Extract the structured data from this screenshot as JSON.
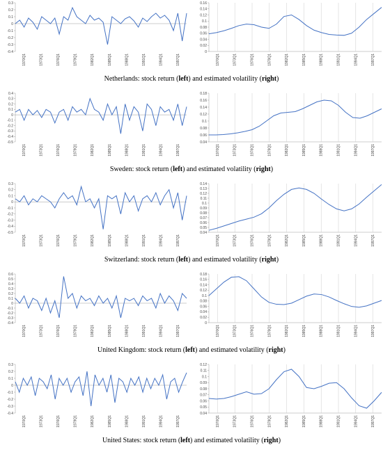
{
  "chart_data": [
    {
      "type": "line",
      "color": "#4472c4",
      "grid": false,
      "ylim": [
        -0.4,
        0.3
      ],
      "yticks": [
        -0.4,
        -0.3,
        -0.2,
        -0.1,
        0,
        0.1,
        0.2,
        0.3
      ],
      "x_tick_labels": [
        "1970Q1",
        "1973Q1",
        "1976Q1",
        "1979Q1",
        "1982Q1",
        "1985Q1",
        "1988Q1",
        "1991Q1",
        "1994Q1",
        "1997Q1"
      ],
      "values": [
        0.0,
        0.05,
        -0.05,
        0.08,
        0.02,
        -0.08,
        0.1,
        0.05,
        0.0,
        0.08,
        -0.15,
        0.1,
        0.05,
        0.23,
        0.1,
        0.05,
        0.0,
        0.12,
        0.05,
        0.08,
        0.02,
        -0.3,
        0.1,
        0.05,
        0.0,
        0.07,
        0.1,
        0.04,
        -0.05,
        0.08,
        0.03,
        0.1,
        0.15,
        0.08,
        0.12,
        0.05,
        -0.1,
        0.15,
        -0.25,
        0.15
      ]
    },
    {
      "type": "line",
      "color": "#4472c4",
      "grid": true,
      "ylim": [
        0,
        0.16
      ],
      "yticks": [
        0,
        0.02,
        0.04,
        0.06,
        0.08,
        0.1,
        0.12,
        0.14,
        0.16
      ],
      "x_tick_labels": [
        "1970Q1",
        "1973Q1",
        "1976Q1",
        "1979Q1",
        "1982Q1",
        "1985Q1",
        "1988Q1",
        "1991Q1",
        "1994Q1",
        "1997Q1"
      ],
      "values": [
        0.058,
        0.062,
        0.068,
        0.076,
        0.085,
        0.09,
        0.088,
        0.08,
        0.076,
        0.09,
        0.115,
        0.12,
        0.105,
        0.085,
        0.07,
        0.062,
        0.056,
        0.054,
        0.053,
        0.06,
        0.08,
        0.105,
        0.125,
        0.145
      ]
    },
    {
      "type": "line",
      "color": "#4472c4",
      "grid": false,
      "ylim": [
        -0.5,
        0.4
      ],
      "yticks": [
        -0.5,
        -0.4,
        -0.3,
        -0.2,
        -0.1,
        0,
        0.1,
        0.2,
        0.3,
        0.4
      ],
      "x_tick_labels": [
        "1970Q1",
        "1973Q1",
        "1976Q1",
        "1979Q1",
        "1982Q1",
        "1985Q1",
        "1988Q1",
        "1991Q1",
        "1994Q1",
        "1997Q1"
      ],
      "values": [
        0.05,
        0.1,
        -0.1,
        0.1,
        0.0,
        0.08,
        -0.05,
        0.1,
        0.05,
        -0.15,
        0.05,
        0.1,
        -0.1,
        0.15,
        0.05,
        0.1,
        0.0,
        0.3,
        0.1,
        0.05,
        -0.1,
        0.2,
        0.0,
        0.15,
        -0.35,
        0.2,
        -0.1,
        0.15,
        0.05,
        -0.3,
        0.2,
        0.1,
        -0.2,
        0.15,
        0.05,
        0.1,
        -0.1,
        0.2,
        -0.2,
        0.15
      ]
    },
    {
      "type": "line",
      "color": "#4472c4",
      "grid": true,
      "ylim": [
        0.04,
        0.18
      ],
      "yticks": [
        0.04,
        0.06,
        0.08,
        0.1,
        0.12,
        0.14,
        0.16,
        0.18
      ],
      "x_tick_labels": [
        "1970Q1",
        "1973Q1",
        "1976Q1",
        "1979Q1",
        "1982Q1",
        "1985Q1",
        "1988Q1",
        "1991Q1",
        "1994Q1",
        "1997Q1"
      ],
      "values": [
        0.06,
        0.06,
        0.061,
        0.063,
        0.066,
        0.07,
        0.075,
        0.085,
        0.1,
        0.115,
        0.123,
        0.125,
        0.127,
        0.135,
        0.145,
        0.155,
        0.16,
        0.158,
        0.145,
        0.125,
        0.11,
        0.108,
        0.115,
        0.125,
        0.135
      ]
    },
    {
      "type": "line",
      "color": "#4472c4",
      "grid": false,
      "ylim": [
        -0.5,
        0.3
      ],
      "yticks": [
        -0.5,
        -0.4,
        -0.3,
        -0.2,
        -0.1,
        0,
        0.1,
        0.2,
        0.3
      ],
      "x_tick_labels": [
        "1970Q1",
        "1973Q1",
        "1976Q1",
        "1979Q1",
        "1982Q1",
        "1985Q1",
        "1988Q1",
        "1991Q1",
        "1994Q1",
        "1997Q1"
      ],
      "values": [
        0.05,
        0.0,
        0.1,
        -0.05,
        0.05,
        0.0,
        0.1,
        0.05,
        0.0,
        -0.1,
        0.05,
        0.15,
        0.05,
        0.1,
        -0.05,
        0.25,
        0.0,
        0.05,
        -0.1,
        0.05,
        -0.45,
        0.1,
        0.05,
        0.1,
        -0.2,
        0.15,
        0.0,
        0.1,
        -0.15,
        0.05,
        0.1,
        0.0,
        0.15,
        -0.05,
        0.1,
        0.2,
        -0.1,
        0.15,
        -0.3,
        0.1
      ]
    },
    {
      "type": "line",
      "color": "#4472c4",
      "grid": true,
      "ylim": [
        0.04,
        0.14
      ],
      "yticks": [
        0.04,
        0.05,
        0.06,
        0.07,
        0.08,
        0.09,
        0.1,
        0.11,
        0.12,
        0.13,
        0.14
      ],
      "x_tick_labels": [
        "1970Q1",
        "1973Q1",
        "1976Q1",
        "1979Q1",
        "1982Q1",
        "1985Q1",
        "1988Q1",
        "1991Q1",
        "1994Q1",
        "1997Q1"
      ],
      "values": [
        0.044,
        0.048,
        0.053,
        0.058,
        0.063,
        0.067,
        0.071,
        0.078,
        0.09,
        0.105,
        0.118,
        0.128,
        0.131,
        0.128,
        0.12,
        0.108,
        0.097,
        0.088,
        0.084,
        0.088,
        0.098,
        0.112,
        0.125,
        0.138
      ]
    },
    {
      "type": "line",
      "color": "#4472c4",
      "grid": false,
      "ylim": [
        -0.4,
        0.6
      ],
      "yticks": [
        -0.4,
        -0.3,
        -0.2,
        -0.1,
        0,
        0.1,
        0.2,
        0.3,
        0.4,
        0.5,
        0.6
      ],
      "x_tick_labels": [
        "1970Q1",
        "1973Q1",
        "1976Q1",
        "1979Q1",
        "1982Q1",
        "1985Q1",
        "1988Q1",
        "1991Q1",
        "1994Q1",
        "1997Q1"
      ],
      "values": [
        0.1,
        0.0,
        0.15,
        -0.1,
        0.1,
        0.05,
        -0.15,
        0.1,
        -0.2,
        0.05,
        -0.3,
        0.55,
        0.1,
        0.2,
        -0.1,
        0.15,
        0.05,
        0.1,
        -0.05,
        0.15,
        0.0,
        0.1,
        -0.1,
        0.15,
        -0.3,
        0.1,
        0.05,
        0.1,
        -0.05,
        0.15,
        0.05,
        0.1,
        -0.1,
        0.2,
        0.0,
        0.15,
        0.05,
        -0.15,
        0.2,
        0.1
      ]
    },
    {
      "type": "line",
      "color": "#4472c4",
      "grid": true,
      "ylim": [
        0,
        0.18
      ],
      "yticks": [
        0,
        0.02,
        0.04,
        0.06,
        0.08,
        0.1,
        0.12,
        0.14,
        0.16,
        0.18
      ],
      "x_tick_labels": [
        "1970Q1",
        "1973Q1",
        "1976Q1",
        "1979Q1",
        "1982Q1",
        "1985Q1",
        "1988Q1",
        "1991Q1",
        "1994Q1",
        "1997Q1"
      ],
      "values": [
        0.1,
        0.125,
        0.15,
        0.168,
        0.17,
        0.155,
        0.125,
        0.095,
        0.075,
        0.068,
        0.067,
        0.072,
        0.085,
        0.098,
        0.106,
        0.104,
        0.095,
        0.082,
        0.07,
        0.06,
        0.057,
        0.062,
        0.072,
        0.082
      ]
    },
    {
      "type": "line",
      "color": "#4472c4",
      "grid": false,
      "ylim": [
        -0.4,
        0.3
      ],
      "yticks": [
        -0.4,
        -0.3,
        -0.2,
        -0.1,
        0,
        0.1,
        0.2,
        0.3
      ],
      "x_tick_labels": [
        "1970Q1",
        "1973Q1",
        "1976Q1",
        "1979Q1",
        "1982Q1",
        "1985Q1",
        "1988Q1",
        "1991Q1",
        "1994Q1",
        "1997Q1"
      ],
      "values": [
        0.05,
        -0.1,
        0.1,
        0.0,
        0.12,
        -0.15,
        0.1,
        0.05,
        -0.05,
        0.15,
        -0.2,
        0.1,
        0.0,
        0.1,
        -0.1,
        0.05,
        0.12,
        -0.15,
        0.2,
        -0.3,
        0.15,
        0.0,
        0.1,
        -0.1,
        0.15,
        -0.25,
        0.1,
        0.05,
        -0.1,
        0.1,
        0.0,
        0.12,
        -0.1,
        0.1,
        -0.05,
        0.1,
        0.0,
        0.15,
        -0.2,
        0.05,
        0.1,
        -0.1,
        0.05,
        0.18
      ]
    },
    {
      "type": "line",
      "color": "#4472c4",
      "grid": true,
      "ylim": [
        0.04,
        0.12
      ],
      "yticks": [
        0.04,
        0.05,
        0.06,
        0.07,
        0.08,
        0.09,
        0.1,
        0.11,
        0.12
      ],
      "x_tick_labels": [
        "1970Q1",
        "1973Q1",
        "1976Q1",
        "1979Q1",
        "1982Q1",
        "1985Q1",
        "1988Q1",
        "1991Q1",
        "1994Q1",
        "1997Q1"
      ],
      "values": [
        0.064,
        0.063,
        0.064,
        0.067,
        0.071,
        0.075,
        0.071,
        0.072,
        0.08,
        0.095,
        0.108,
        0.112,
        0.1,
        0.082,
        0.08,
        0.084,
        0.089,
        0.09,
        0.08,
        0.065,
        0.052,
        0.048,
        0.06,
        0.074
      ]
    }
  ],
  "captions": [
    [
      "Netherlands: stock return (",
      "left",
      ") and estimated volatility (",
      "right",
      ")"
    ],
    [
      "Sweden: stock return (",
      "left",
      ") and estimated volatility (",
      "right",
      ")"
    ],
    [
      "Switzerland: stock return (",
      "left",
      ") and estimated volatility (",
      "right",
      ")"
    ],
    [
      "United Kingdom: stock return (",
      "left",
      ") and estimated volatility (",
      "right",
      ")"
    ],
    [
      "United States: stock return (",
      "left",
      ") and estimated volatility (",
      "right",
      ")"
    ]
  ]
}
